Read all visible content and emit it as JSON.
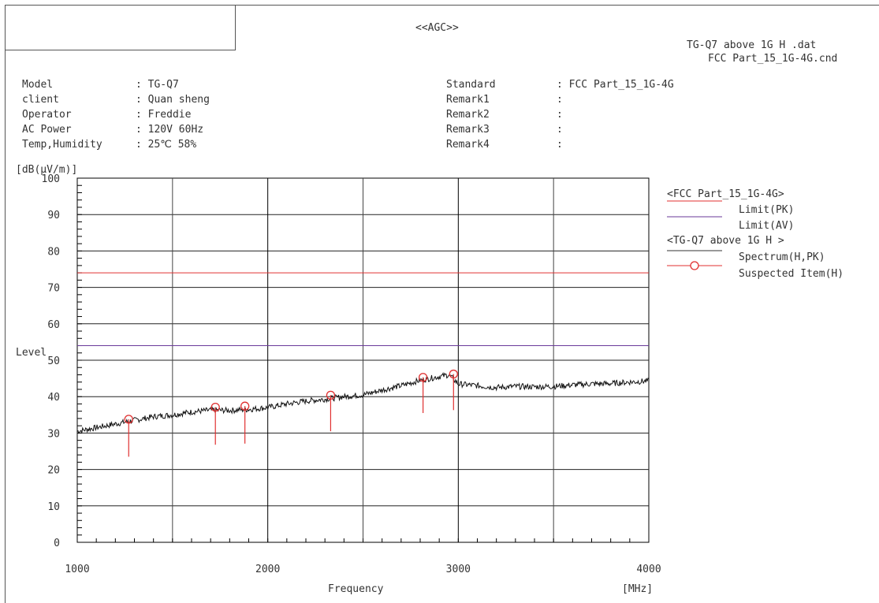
{
  "header": {
    "agc": "<<AGC>>",
    "data_file": "TG-Q7 above 1G H .dat",
    "cnd_file": "FCC Part_15_1G-4G.cnd"
  },
  "info_left": [
    {
      "label": "Model",
      "value": ": TG-Q7"
    },
    {
      "label": "client",
      "value": ": Quan sheng"
    },
    {
      "label": "Operator",
      "value": ": Freddie"
    },
    {
      "label": "AC Power",
      "value": ": 120V 60Hz"
    },
    {
      "label": "Temp,Humidity",
      "value": ": 25℃ 58%"
    }
  ],
  "info_right": [
    {
      "label": "Standard",
      "value": ": FCC Part_15_1G-4G"
    },
    {
      "label": "Remark1",
      "value": ":"
    },
    {
      "label": "Remark2",
      "value": ":"
    },
    {
      "label": "Remark3",
      "value": ":"
    },
    {
      "label": "Remark4",
      "value": ":"
    }
  ],
  "legend": {
    "group1": "<FCC Part_15_1G-4G>",
    "limit_pk": "Limit(PK)",
    "limit_av": "Limit(AV)",
    "group2": "<TG-Q7 above 1G H >",
    "spectrum": "Spectrum(H,PK)",
    "suspected": "Suspected Item(H)"
  },
  "colors": {
    "limit_pk": "#e03030",
    "limit_av": "#6a3a9a",
    "spectrum": "#111111",
    "suspected": "#e03030",
    "grid": "#222222"
  },
  "chart_data": {
    "type": "line",
    "ylabel_unit": "[dB(μV/m)]",
    "ylabel": "Level",
    "xlabel": "Frequency",
    "xunit": "[MHz]",
    "xlim": [
      1000,
      4000
    ],
    "ylim": [
      0,
      100
    ],
    "x_ticks": [
      1000,
      2000,
      3000,
      4000
    ],
    "y_ticks": [
      0,
      10,
      20,
      30,
      40,
      50,
      60,
      70,
      80,
      90,
      100
    ],
    "limits": [
      {
        "name": "Limit(PK)",
        "value": 74
      },
      {
        "name": "Limit(AV)",
        "value": 54
      }
    ],
    "spectrum": [
      [
        1000,
        30.5
      ],
      [
        1100,
        31.5
      ],
      [
        1200,
        32.5
      ],
      [
        1300,
        33.5
      ],
      [
        1400,
        34.5
      ],
      [
        1500,
        35
      ],
      [
        1600,
        35.8
      ],
      [
        1700,
        36.3
      ],
      [
        1800,
        36.2
      ],
      [
        1900,
        36.5
      ],
      [
        2000,
        37
      ],
      [
        2100,
        38
      ],
      [
        2200,
        38.8
      ],
      [
        2300,
        39.3
      ],
      [
        2400,
        40
      ],
      [
        2500,
        40.5
      ],
      [
        2600,
        41.8
      ],
      [
        2700,
        43
      ],
      [
        2800,
        44.5
      ],
      [
        2900,
        45.5
      ],
      [
        2950,
        46
      ],
      [
        3000,
        43.5
      ],
      [
        3100,
        43
      ],
      [
        3200,
        42.5
      ],
      [
        3300,
        42.8
      ],
      [
        3400,
        42.7
      ],
      [
        3500,
        42.8
      ],
      [
        3600,
        43.2
      ],
      [
        3700,
        43.5
      ],
      [
        3800,
        43.6
      ],
      [
        3900,
        44
      ],
      [
        4000,
        44.3
      ]
    ],
    "suspected": [
      {
        "x": 1270,
        "y": 33.8,
        "base": 23.5
      },
      {
        "x": 1725,
        "y": 37.1,
        "base": 26.8
      },
      {
        "x": 1880,
        "y": 37.4,
        "base": 27.1
      },
      {
        "x": 2330,
        "y": 40.4,
        "base": 30.5
      },
      {
        "x": 2815,
        "y": 45.3,
        "base": 35.5
      },
      {
        "x": 2975,
        "y": 46.2,
        "base": 36.3
      }
    ]
  }
}
